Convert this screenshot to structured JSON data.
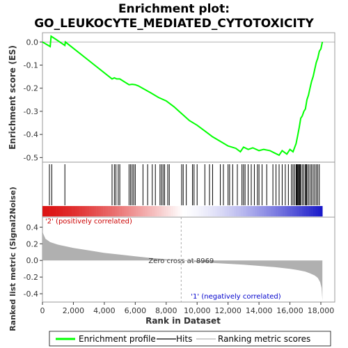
{
  "chart_data": {
    "type": "line",
    "title_line1": "Enrichment plot:",
    "title_line2": "GO_LEUKOCYTE_MEDIATED_CYTOTOXICITY",
    "panel_top": {
      "ylabel": "Enrichment score (ES)",
      "ylim": [
        -0.52,
        0.04
      ],
      "yticks": [
        0.0,
        -0.1,
        -0.2,
        -0.3,
        -0.4,
        -0.5
      ],
      "ytick_labels": [
        "0.0",
        "-0.1",
        "-0.2",
        "-0.3",
        "-0.4",
        "-0.5"
      ],
      "series": [
        {
          "name": "Enrichment profile",
          "color": "#00ff00",
          "x": [
            0,
            500,
            560,
            900,
            1450,
            1480,
            4500,
            4650,
            4800,
            5000,
            5600,
            5800,
            6000,
            6200,
            7000,
            7500,
            8000,
            8500,
            9000,
            9500,
            10000,
            10500,
            11000,
            11500,
            12000,
            12500,
            12800,
            13000,
            13300,
            13600,
            14000,
            14300,
            14700,
            15000,
            15300,
            15500,
            15800,
            16000,
            16200,
            16400,
            16500,
            16600,
            16700,
            16800,
            16900,
            17000,
            17100,
            17200,
            17300,
            17400,
            17500,
            17600,
            17700,
            17800,
            17900,
            18000,
            18100
          ],
          "y": [
            0.0,
            -0.02,
            0.025,
            0.01,
            -0.015,
            0.0,
            -0.16,
            -0.155,
            -0.16,
            -0.16,
            -0.185,
            -0.183,
            -0.185,
            -0.19,
            -0.22,
            -0.24,
            -0.255,
            -0.28,
            -0.31,
            -0.34,
            -0.36,
            -0.385,
            -0.41,
            -0.43,
            -0.45,
            -0.46,
            -0.475,
            -0.455,
            -0.465,
            -0.458,
            -0.47,
            -0.465,
            -0.47,
            -0.48,
            -0.49,
            -0.47,
            -0.485,
            -0.465,
            -0.475,
            -0.44,
            -0.405,
            -0.37,
            -0.33,
            -0.32,
            -0.3,
            -0.29,
            -0.25,
            -0.23,
            -0.2,
            -0.17,
            -0.15,
            -0.12,
            -0.09,
            -0.07,
            -0.04,
            -0.03,
            0.0
          ]
        }
      ]
    },
    "panel_hits": {
      "series_name": "Hits",
      "x": [
        450,
        600,
        1450,
        4500,
        4650,
        4750,
        4900,
        5000,
        5600,
        5700,
        5800,
        5900,
        6000,
        6500,
        6800,
        7100,
        7300,
        7600,
        7700,
        7800,
        7900,
        8100,
        8200,
        9000,
        9100,
        9300,
        9700,
        9800,
        10000,
        10500,
        10800,
        11000,
        11500,
        11700,
        12000,
        12100,
        12300,
        12600,
        12900,
        13000,
        13100,
        13300,
        13500,
        13700,
        13900,
        14000,
        14200,
        14500,
        14900,
        15100,
        15300,
        15500,
        15700,
        15900,
        16100,
        16200,
        16300,
        16400,
        16450,
        16500,
        16550,
        16600,
        16650,
        16700,
        16800,
        16900,
        17000,
        17050,
        17100,
        17200,
        17300,
        17400,
        17500,
        17600,
        17700,
        17800,
        17900
      ]
    },
    "panel_bottom": {
      "ylabel": "Ranked list metric (Signal2Noise)",
      "ylim": [
        -0.5,
        0.52
      ],
      "yticks": [
        0.4,
        0.2,
        0.0,
        -0.2,
        -0.4
      ],
      "ytick_labels": [
        "0.4",
        "0.2",
        "0.0",
        "-0.2",
        "-0.4"
      ],
      "series_name": "Ranking metric scores",
      "color": "#b0b0b0",
      "x": [
        0,
        50,
        200,
        500,
        1000,
        2000,
        3000,
        4000,
        5000,
        6000,
        7000,
        8000,
        8969,
        10000,
        11000,
        12000,
        13000,
        14000,
        15000,
        16000,
        16500,
        17000,
        17300,
        17600,
        17800,
        17950,
        18050,
        18100
      ],
      "y": [
        0.36,
        0.32,
        0.26,
        0.22,
        0.19,
        0.15,
        0.12,
        0.09,
        0.07,
        0.05,
        0.03,
        0.015,
        0.0,
        -0.02,
        -0.03,
        -0.04,
        -0.05,
        -0.065,
        -0.08,
        -0.1,
        -0.115,
        -0.135,
        -0.155,
        -0.18,
        -0.21,
        -0.26,
        -0.33,
        -0.48
      ]
    },
    "xlabel": "Rank in Dataset",
    "xlim": [
      0,
      18900
    ],
    "xticks": [
      0,
      2000,
      4000,
      6000,
      8000,
      10000,
      12000,
      14000,
      16000,
      18000
    ],
    "xtick_labels": [
      "0",
      "2,000",
      "4,000",
      "6,000",
      "8,000",
      "10,000",
      "12,000",
      "14,000",
      "16,000",
      "18,000"
    ],
    "zero_cross": 8969,
    "zero_cross_label": "Zero cross at 8969",
    "pos_label": "'2' (positively correlated)",
    "neg_label": "'1' (negatively correlated)",
    "legend": [
      {
        "label": "Enrichment profile",
        "color": "#00ff00",
        "style": "thick"
      },
      {
        "label": "Hits",
        "color": "#000000",
        "style": "thin"
      },
      {
        "label": "Ranking metric scores",
        "color": "#b0b0b0",
        "style": "thin"
      }
    ],
    "legend_position": "bottom",
    "colors": {
      "positive": "#cc0000",
      "negative": "#0000cc",
      "profile": "#00ff00"
    }
  }
}
